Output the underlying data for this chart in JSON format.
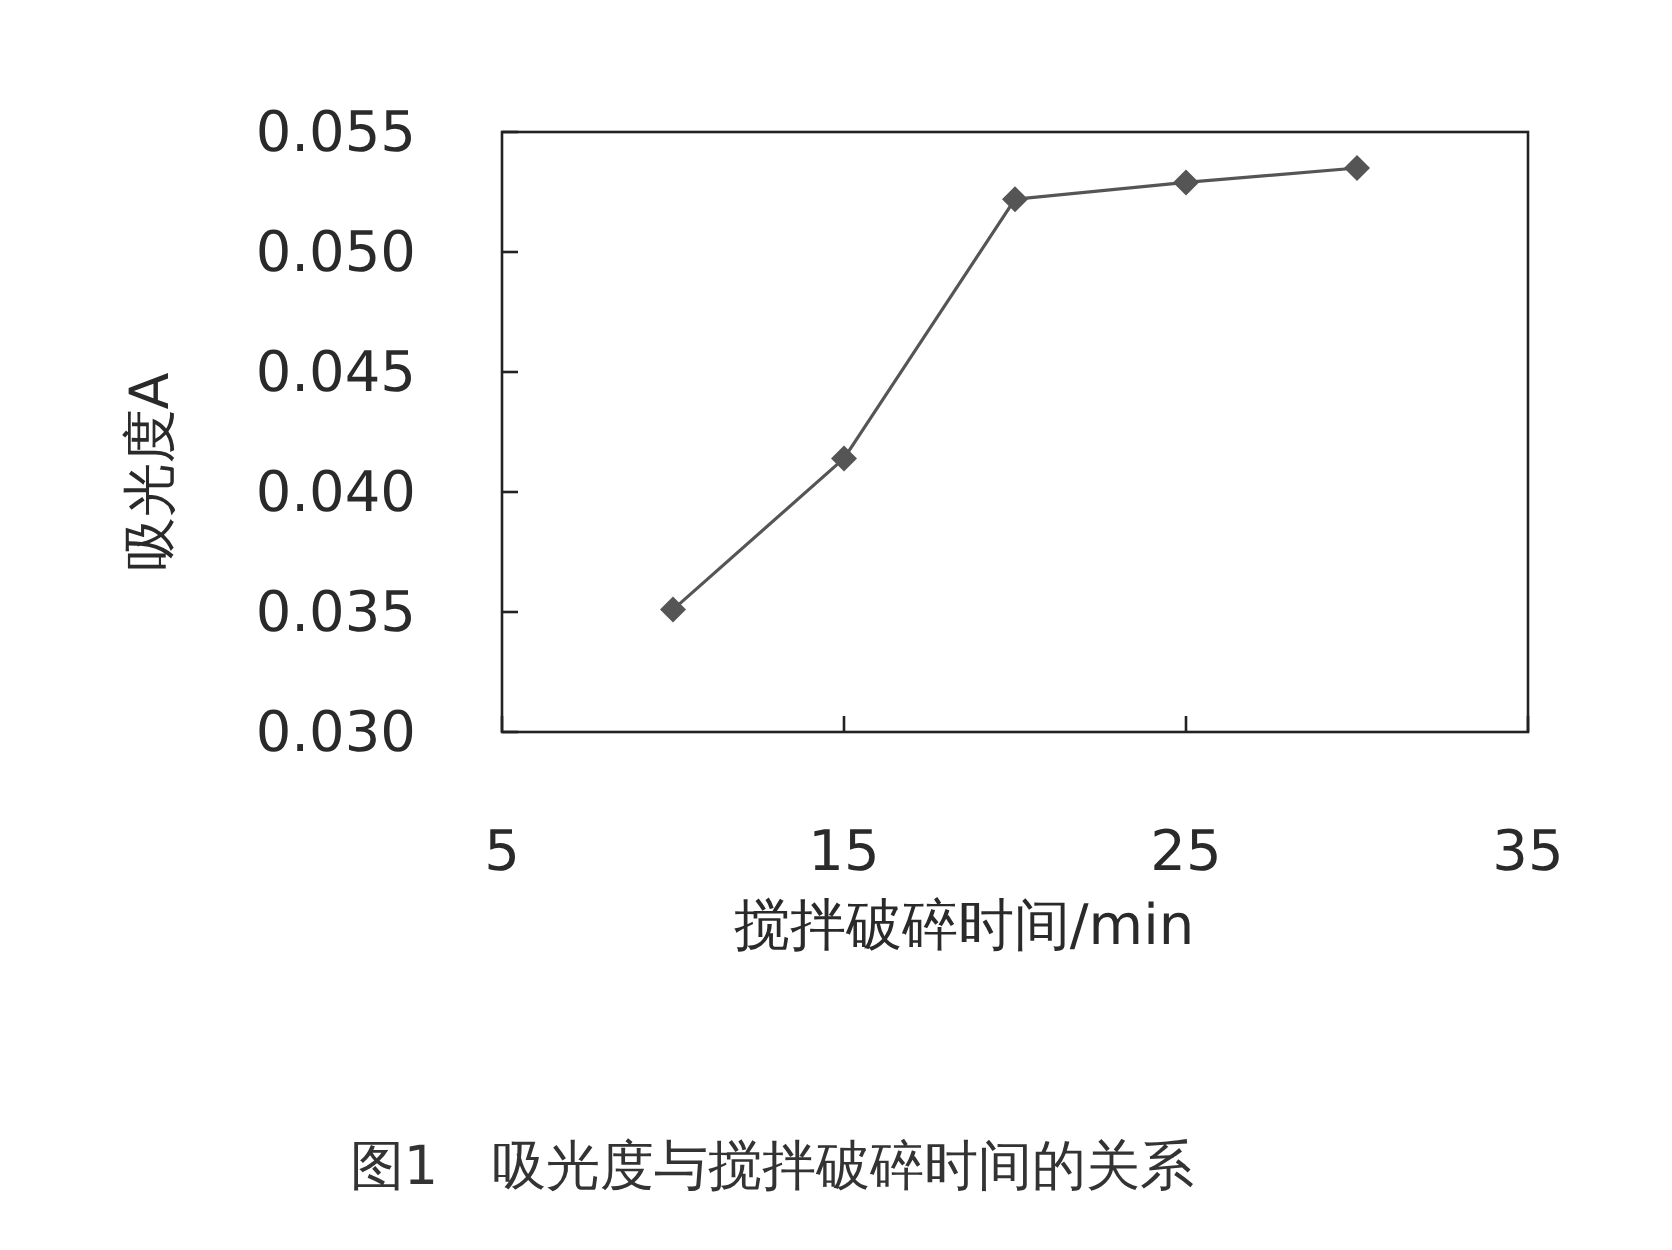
{
  "chart_data": {
    "type": "line",
    "title": "图1　吸光度与搅拌破碎时间的关系",
    "xlabel": "搅拌破碎时间/min",
    "ylabel": "吸光度A",
    "x": [
      10,
      15,
      20,
      25,
      30
    ],
    "series": [
      {
        "color": "#555555",
        "values": [
          0.0351,
          0.0414,
          0.0522,
          0.0529,
          0.0535
        ]
      }
    ],
    "xlim": [
      5,
      35
    ],
    "xticks": [
      5,
      15,
      25,
      35
    ],
    "ylim": [
      0.03,
      0.055
    ],
    "yticks": [
      {
        "value": 0.03,
        "label": "0.030"
      },
      {
        "value": 0.035,
        "label": "0.035"
      },
      {
        "value": 0.04,
        "label": "0.040"
      },
      {
        "value": 0.045,
        "label": "0.045"
      },
      {
        "value": 0.05,
        "label": "0.050"
      },
      {
        "value": 0.055,
        "label": "0.055"
      }
    ],
    "marker": "diamond",
    "line_style": "solid"
  }
}
